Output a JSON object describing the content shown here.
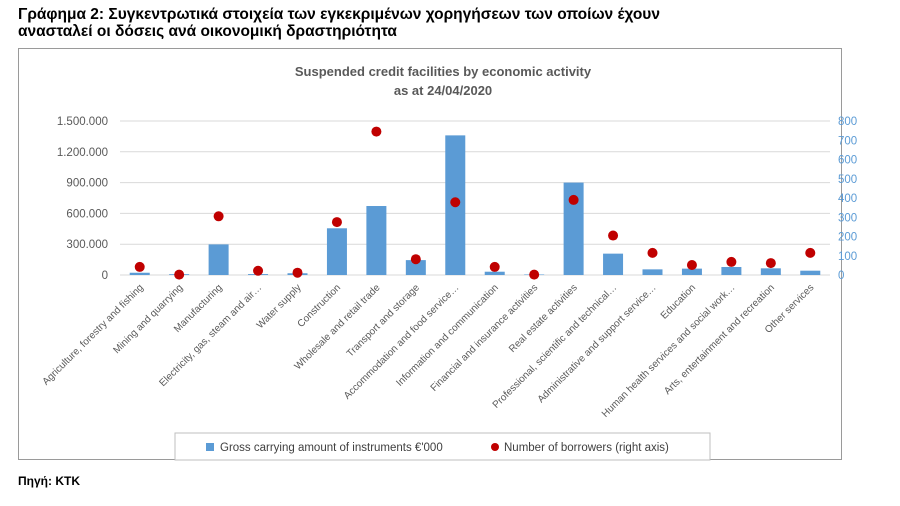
{
  "figure": {
    "heading_line1": "Γράφημα 2: Συγκεντρωτικά στοιχεία των εγκεκριμένων χορηγήσεων των οποίων έχουν",
    "heading_line2": "ανασταλεί οι δόσεις ανά οικονομική δραστηριότητα",
    "source": "Πηγή: ΚΤΚ"
  },
  "colors": {
    "bar": "#5b9bd5",
    "dot": "#c00000",
    "grid": "#d9d9d9",
    "left_axis_text": "#595959",
    "right_axis_text": "#5b9bd5",
    "title_text": "#595959"
  },
  "chart_data": {
    "type": "bar",
    "title": "Suspended credit facilities by economic activity",
    "subtitle": "as at 24/04/2020",
    "categories": [
      "Agriculture, forestry and fishing",
      "Mining and quarrying",
      "Manufacturing",
      "Electricity, gas, steam and air…",
      "Water supply",
      "Construction",
      "Wholesale and retail trade",
      "Transport and storage",
      "Accommodation and food service…",
      "Information and communication",
      "Financial and insurance activities",
      "Real estate activities",
      "Professional, scientific and technical…",
      "Administrative and support service…",
      "Education",
      "Human health services and social work…",
      "Arts, entertainment and recreation",
      "Other services"
    ],
    "series": [
      {
        "name": "Gross carrying amount of instruments €'000",
        "kind": "bar",
        "axis": "left",
        "values": [
          22000,
          8000,
          298000,
          9000,
          17000,
          455000,
          672000,
          145000,
          1360000,
          32000,
          5000,
          900000,
          208000,
          55000,
          62000,
          78000,
          65000,
          42000
        ]
      },
      {
        "name": "Number of borrowers (right axis)",
        "kind": "scatter",
        "axis": "right",
        "values": [
          42,
          2,
          305,
          22,
          12,
          275,
          745,
          82,
          378,
          42,
          2,
          390,
          205,
          115,
          52,
          68,
          62,
          115
        ]
      }
    ],
    "y_left": {
      "ylim": [
        0,
        1500000
      ],
      "ticks": [
        "0",
        "300.000",
        "600.000",
        "900.000",
        "1.200.000",
        "1.500.000"
      ],
      "tick_values": [
        0,
        300000,
        600000,
        900000,
        1200000,
        1500000
      ]
    },
    "y_right": {
      "ylim": [
        0,
        800
      ],
      "ticks": [
        "0",
        "100",
        "200",
        "300",
        "400",
        "500",
        "600",
        "700",
        "800"
      ],
      "tick_values": [
        0,
        100,
        200,
        300,
        400,
        500,
        600,
        700,
        800
      ]
    },
    "grid": true,
    "legend_position": "bottom"
  }
}
